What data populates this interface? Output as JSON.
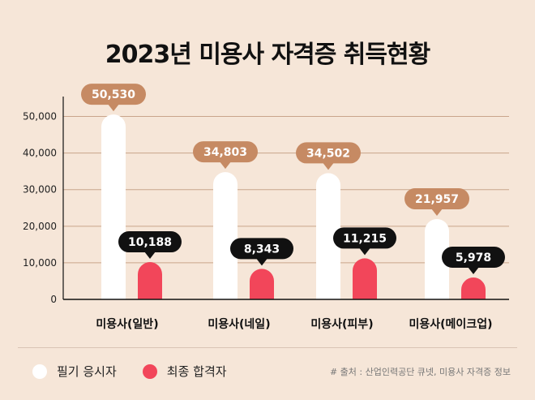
{
  "chart_data": {
    "type": "bar",
    "title": "2023년 미용사 자격증 취득현황",
    "categories": [
      "미용사(일반)",
      "미용사(네일)",
      "미용사(피부)",
      "미용사(메이크업)"
    ],
    "series": [
      {
        "name": "필기 응시자",
        "values": [
          50530,
          34803,
          34502,
          21957
        ],
        "labels": [
          "50,530",
          "34,803",
          "34,502",
          "21,957"
        ]
      },
      {
        "name": "최종 합격자",
        "values": [
          10188,
          8343,
          11215,
          5978
        ],
        "labels": [
          "10,188",
          "8,343",
          "11,215",
          "5,978"
        ]
      }
    ],
    "ylim": [
      0,
      55000
    ],
    "yticks": [
      0,
      10000,
      20000,
      30000,
      40000,
      50000
    ],
    "ytick_labels": [
      "0",
      "10,000",
      "20,000",
      "30,000",
      "40,000",
      "50,000"
    ],
    "grid": true,
    "legend_position": "bottom-left"
  },
  "colors": {
    "background": "#f6e6d8",
    "series1_bar": "#ffffff",
    "series2_bar": "#f2465a",
    "series1_label_bg": "#c68a63",
    "series2_label_bg": "#111111",
    "gridline": "#c9a58b"
  },
  "legend": {
    "items": [
      {
        "label": "필기 응시자"
      },
      {
        "label": "최종 합격자"
      }
    ]
  },
  "source": "# 출처 : 산업인력공단 큐넷, 미용사 자격증 정보"
}
